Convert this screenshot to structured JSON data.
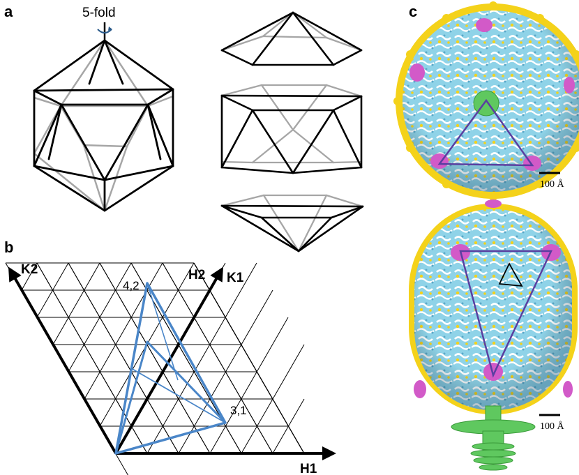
{
  "panels": {
    "a": {
      "letter": "a",
      "symmetry_label": "5-fold",
      "edge_colors": {
        "front": "#000000",
        "back": "#a6a6a6"
      }
    },
    "b": {
      "letter": "b",
      "axes": {
        "h1": "H1",
        "h2": "H2",
        "k1": "K1",
        "k2": "K2"
      },
      "points": {
        "p42": "4,2",
        "p31": "3,1"
      },
      "grid_color": "#000000",
      "triangle_color": "#4a86c8"
    },
    "c": {
      "letter": "c",
      "scale_top": "100 Å",
      "scale_bottom": "100 Å",
      "colors": {
        "capsid": "#8fd3e8",
        "ring": "#ffffff",
        "spike": "#f4d21a",
        "penton": "#d25ac8",
        "portal": "#5fc85f",
        "triangle": "#5a3fa0"
      }
    }
  }
}
